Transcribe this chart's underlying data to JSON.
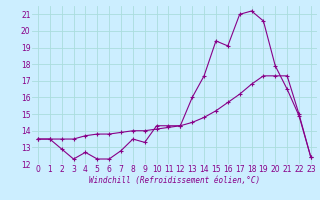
{
  "xlabel": "Windchill (Refroidissement éolien,°C)",
  "bg_color": "#cceeff",
  "grid_color": "#aadddd",
  "line_color": "#880088",
  "series1_x": [
    0,
    1,
    2,
    3,
    4,
    5,
    6,
    7,
    8,
    9,
    10,
    11,
    12,
    13,
    14,
    15,
    16,
    17,
    18,
    19,
    20,
    21,
    22,
    23
  ],
  "series1_y": [
    13.5,
    13.5,
    12.9,
    12.3,
    12.7,
    12.3,
    12.3,
    12.8,
    13.5,
    13.3,
    14.3,
    14.3,
    14.3,
    16.0,
    17.3,
    19.4,
    19.1,
    21.0,
    21.2,
    20.6,
    17.9,
    16.5,
    14.9,
    12.4
  ],
  "series2_x": [
    0,
    1,
    2,
    3,
    4,
    5,
    6,
    7,
    8,
    9,
    10,
    11,
    12,
    13,
    14,
    15,
    16,
    17,
    18,
    19,
    20,
    21,
    22,
    23
  ],
  "series2_y": [
    13.5,
    13.5,
    13.5,
    13.5,
    13.7,
    13.8,
    13.8,
    13.9,
    14.0,
    14.0,
    14.1,
    14.2,
    14.3,
    14.5,
    14.8,
    15.2,
    15.7,
    16.2,
    16.8,
    17.3,
    17.3,
    17.3,
    15.0,
    12.4
  ],
  "ylim": [
    12,
    21.5
  ],
  "xlim": [
    -0.5,
    23.5
  ],
  "yticks": [
    12,
    13,
    14,
    15,
    16,
    17,
    18,
    19,
    20,
    21
  ],
  "xticks": [
    0,
    1,
    2,
    3,
    4,
    5,
    6,
    7,
    8,
    9,
    10,
    11,
    12,
    13,
    14,
    15,
    16,
    17,
    18,
    19,
    20,
    21,
    22,
    23
  ],
  "xlabel_fontsize": 5.5,
  "tick_fontsize": 5.5,
  "marker_size": 3,
  "line_width": 0.8
}
